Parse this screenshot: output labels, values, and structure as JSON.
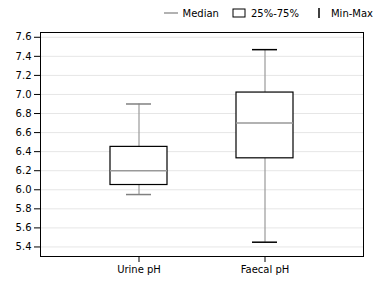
{
  "chart_data": {
    "type": "box",
    "categories": [
      "Urine pH",
      "Faecal pH"
    ],
    "series": [
      {
        "name": "Median",
        "type": "median",
        "color": "#999999",
        "values": [
          6.2,
          6.7
        ]
      },
      {
        "name": "25%-75%",
        "type": "box",
        "color": "white",
        "low": [
          6.05,
          6.33
        ],
        "high": [
          6.45,
          7.02
        ]
      },
      {
        "name": "Min-Max",
        "type": "whisker",
        "color": "#999999",
        "colors": [
          "gray",
          "black"
        ],
        "low": [
          5.95,
          5.45
        ],
        "high": [
          6.9,
          7.47
        ]
      }
    ],
    "ylim": [
      5.3,
      7.65
    ],
    "yticks": [
      5.4,
      5.6,
      5.8,
      {
        "value": 6.0,
        "label": "6.0"
      },
      6.2,
      6.4,
      6.6,
      6.8,
      {
        "value": 7.0,
        "label": "7.0"
      },
      7.2,
      7.4,
      7.6
    ],
    "grid": true,
    "legend": "upper right"
  }
}
